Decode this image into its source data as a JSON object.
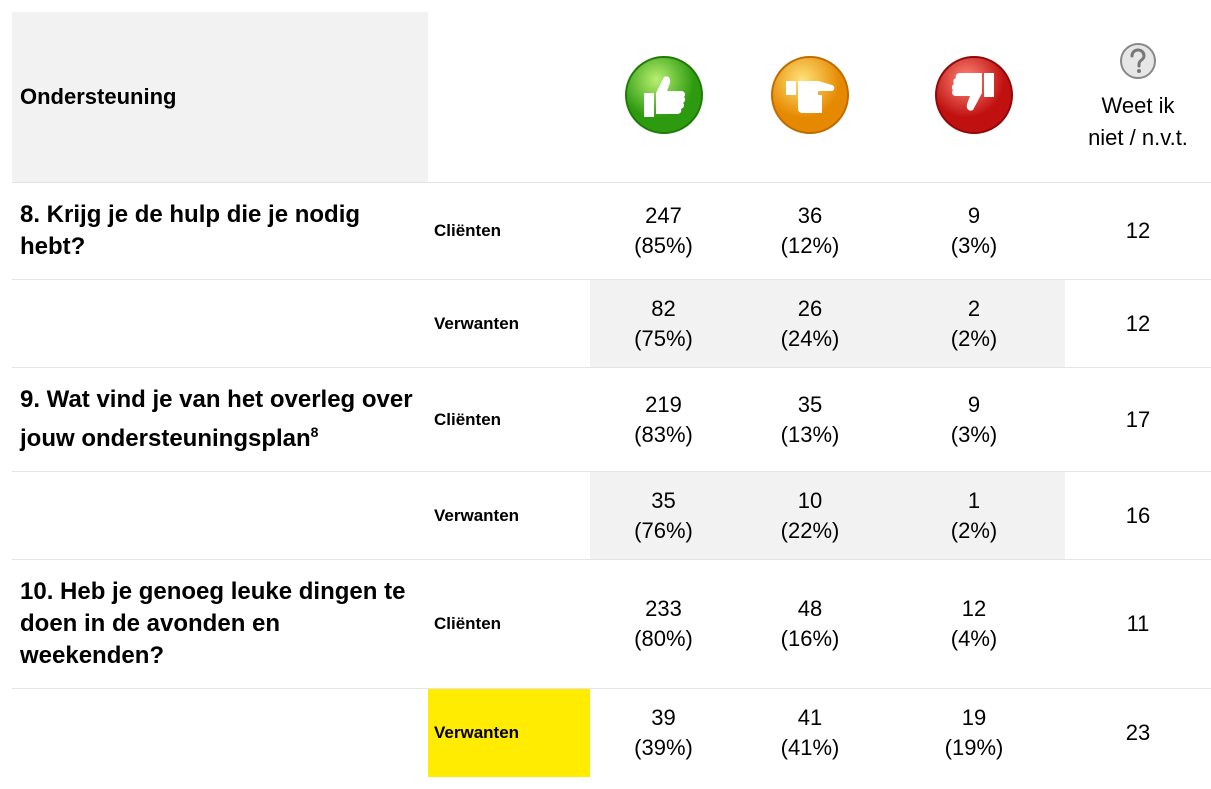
{
  "header": {
    "title": "Ondersteuning",
    "dont_know": [
      "Weet ik",
      "niet / n.v.t."
    ]
  },
  "questions": [
    {
      "question": "8. Krijg je de hulp die je nodig hebt?",
      "groups": [
        {
          "group": "Cliënten",
          "positive": {
            "count": 247,
            "percent": "(85%)"
          },
          "neutral": {
            "count": 36,
            "percent": "(12%)"
          },
          "negative": {
            "count": 9,
            "percent": "(3%)"
          },
          "dont_know": 12
        },
        {
          "group": "Verwanten",
          "positive": {
            "count": 82,
            "percent": "(75%)"
          },
          "neutral": {
            "count": 26,
            "percent": "(24%)"
          },
          "negative": {
            "count": 2,
            "percent": "(2%)"
          },
          "dont_know": 12
        }
      ]
    },
    {
      "question": "9. Wat vind je van het overleg over jouw ondersteuningsplan",
      "footnote": "8",
      "groups": [
        {
          "group": "Cliënten",
          "positive": {
            "count": 219,
            "percent": "(83%)"
          },
          "neutral": {
            "count": 35,
            "percent": "(13%)"
          },
          "negative": {
            "count": 9,
            "percent": "(3%)"
          },
          "dont_know": 17
        },
        {
          "group": "Verwanten",
          "positive": {
            "count": 35,
            "percent": "(76%)"
          },
          "neutral": {
            "count": 10,
            "percent": "(22%)"
          },
          "negative": {
            "count": 1,
            "percent": "(2%)"
          },
          "dont_know": 16
        }
      ]
    },
    {
      "question": "10. Heb je genoeg leuke dingen te doen in de avonden en weekenden?",
      "groups": [
        {
          "group": "Cliënten",
          "positive": {
            "count": 233,
            "percent": "(80%)"
          },
          "neutral": {
            "count": 48,
            "percent": "(16%)"
          },
          "negative": {
            "count": 12,
            "percent": "(4%)"
          },
          "dont_know": 11
        },
        {
          "group": "Verwanten",
          "highlight": "#ffec00",
          "positive": {
            "count": 39,
            "percent": "(39%)"
          },
          "neutral": {
            "count": 41,
            "percent": "(41%)"
          },
          "negative": {
            "count": 19,
            "percent": "(19%)"
          },
          "dont_know": 23
        }
      ]
    }
  ]
}
